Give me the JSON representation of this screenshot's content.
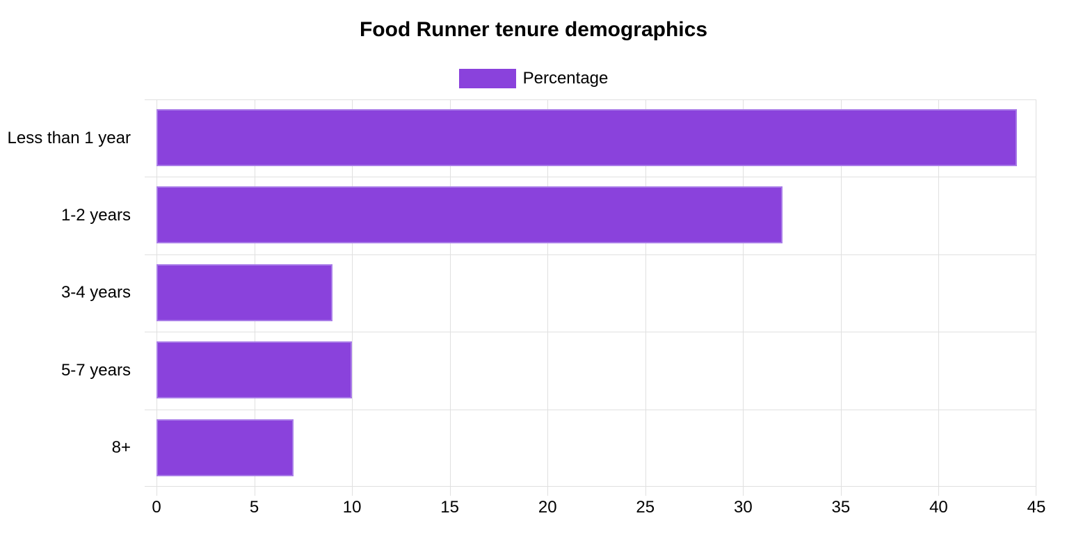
{
  "chart_data": {
    "type": "bar",
    "orientation": "horizontal",
    "title": "Food Runner tenure demographics",
    "categories": [
      "Less than 1 year",
      "1-2 years",
      "3-4 years",
      "5-7 years",
      "8+"
    ],
    "series": [
      {
        "name": "Percentage",
        "values": [
          44,
          32,
          9,
          10,
          7
        ]
      }
    ],
    "xlabel": "",
    "ylabel": "",
    "xlim": [
      0,
      45
    ],
    "x_ticks": [
      0,
      5,
      10,
      15,
      20,
      25,
      30,
      35,
      40,
      45
    ],
    "grid": true,
    "legend_position": "top",
    "colors": {
      "bar_fill": "#8a42dc",
      "bar_border": "#a97ce8",
      "grid_line": "#e0e0e0",
      "text": "#000000",
      "background": "#ffffff"
    }
  }
}
